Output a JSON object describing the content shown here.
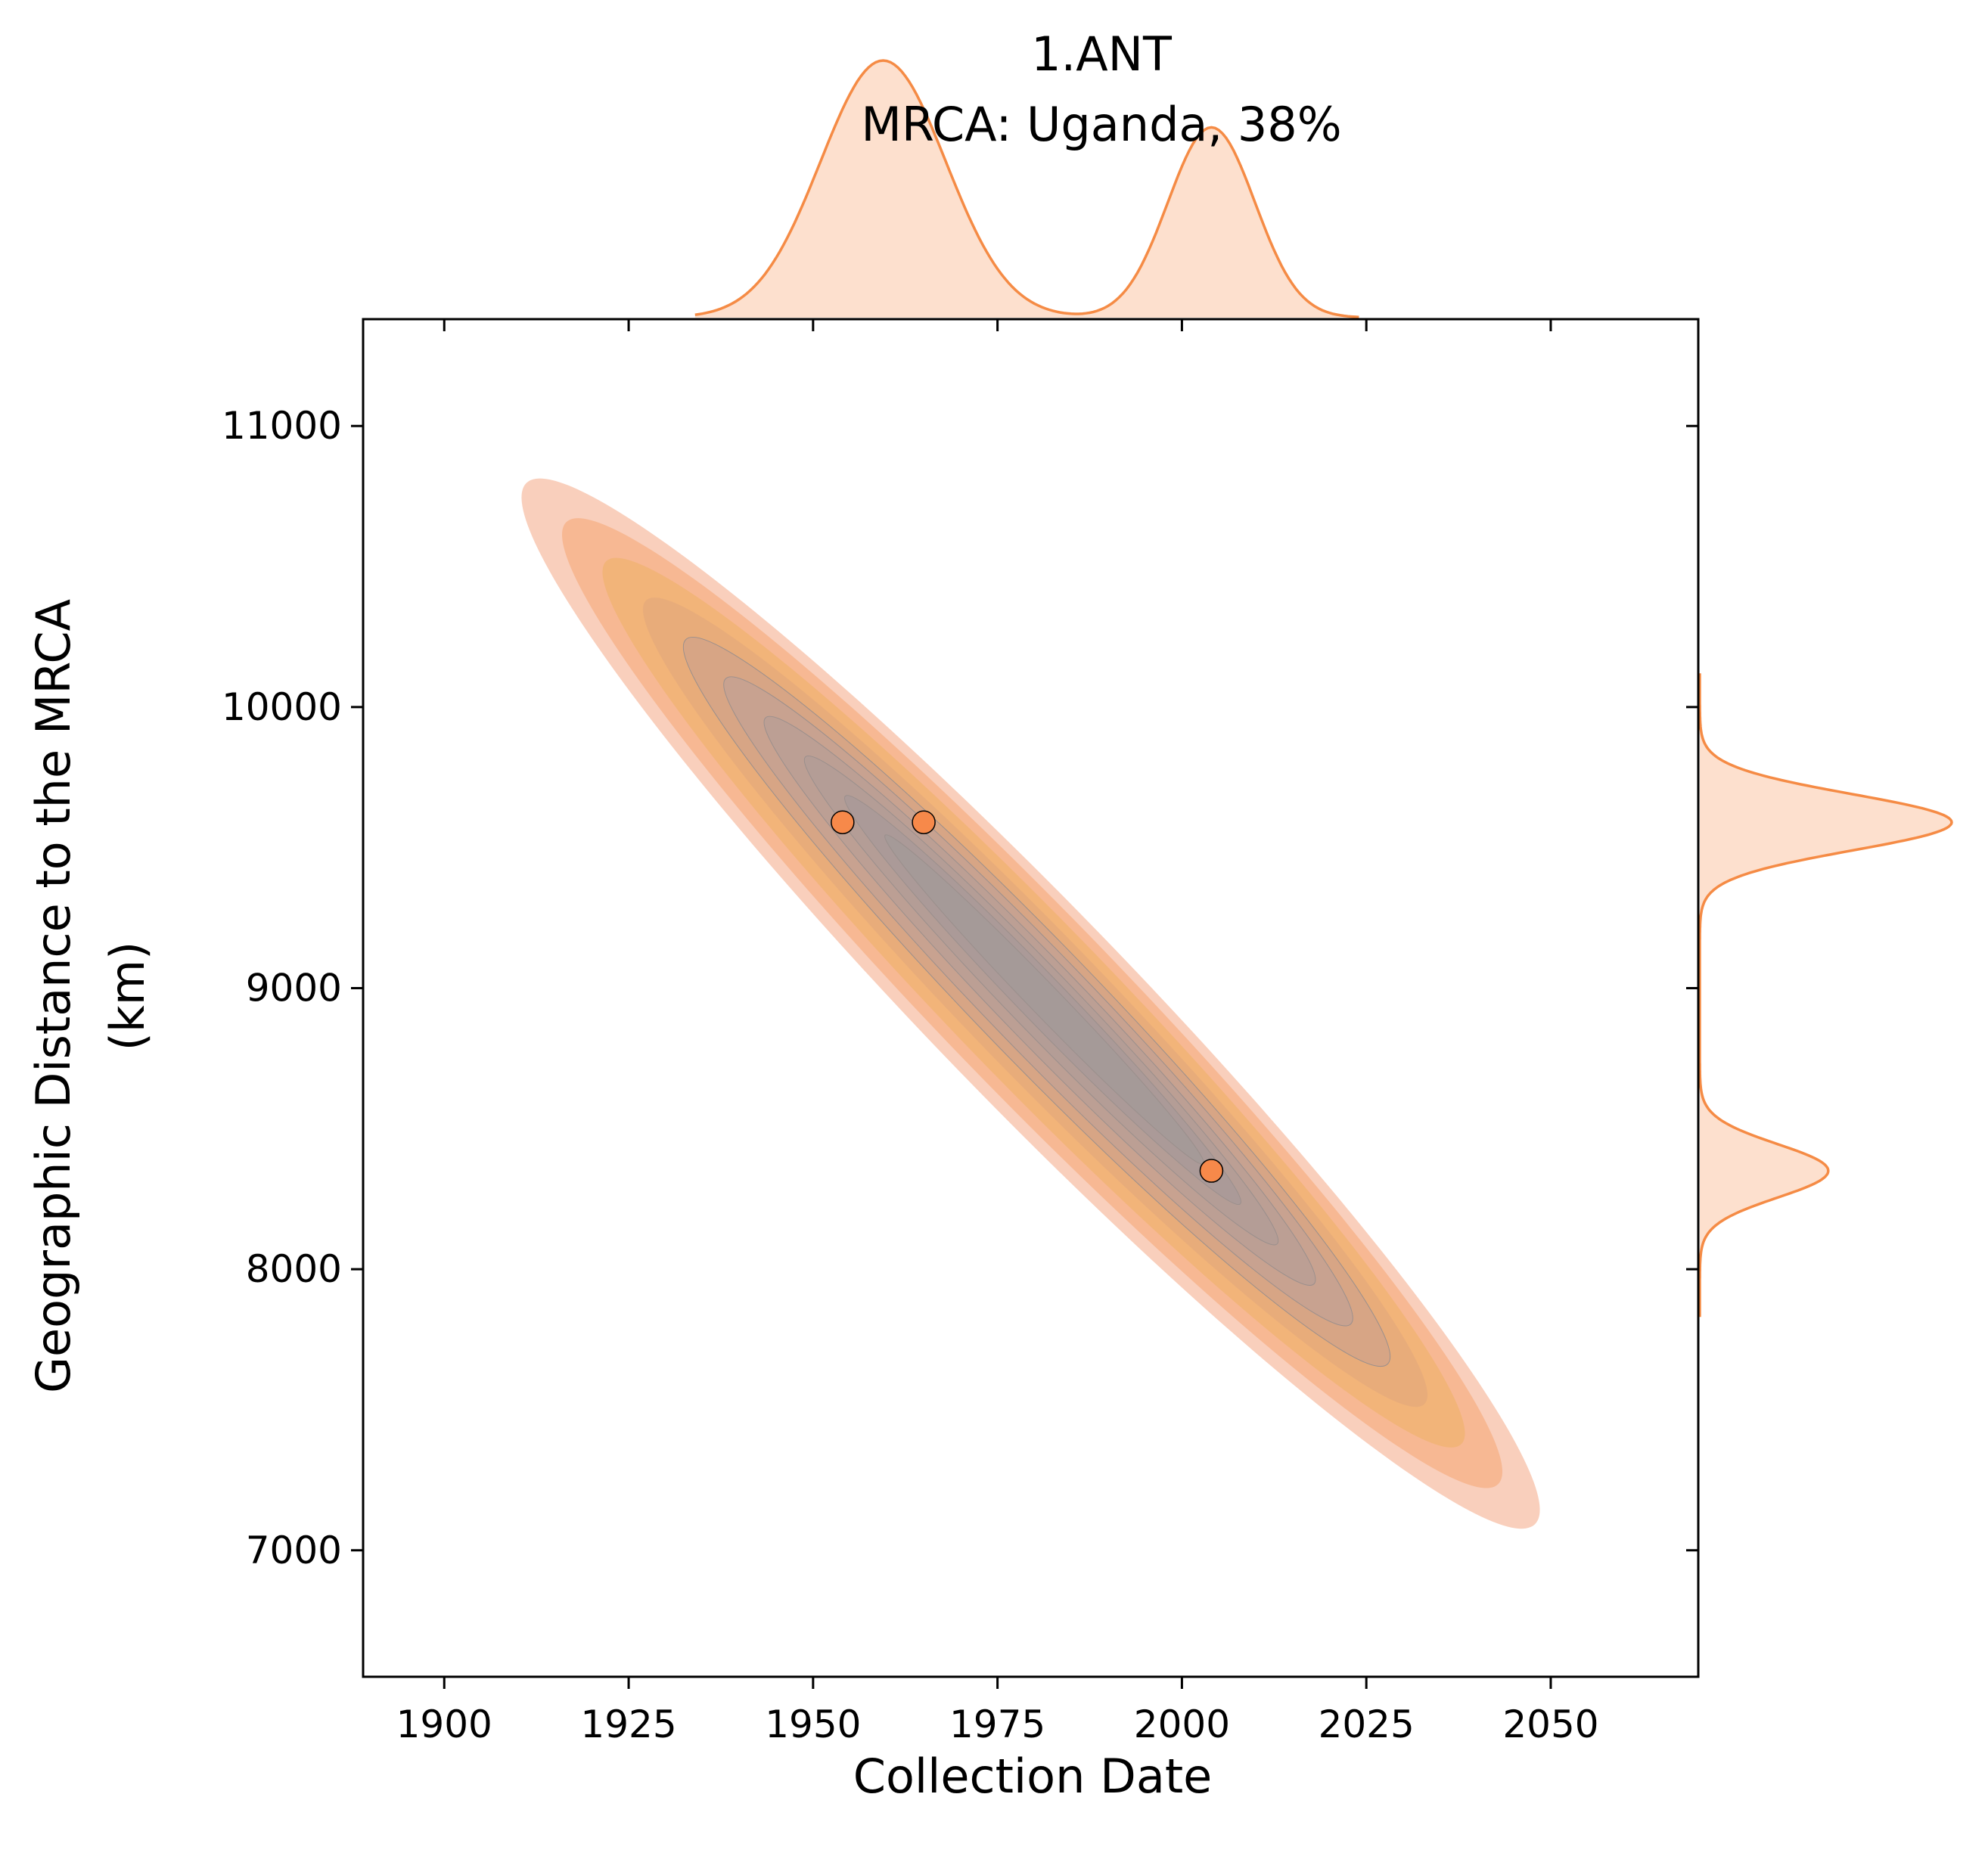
{
  "chart_data": {
    "type": "scatter",
    "title": "1.ANT",
    "subtitle": "MRCA: Uganda, 38%",
    "xlabel": "Collection Date",
    "ylabel_line1": "Geographic Distance to the MRCA",
    "ylabel_line2": "(km)",
    "xlim": [
      1889,
      2070
    ],
    "ylim": [
      6550,
      11380
    ],
    "xticks": [
      1900,
      1925,
      1950,
      1975,
      2000,
      2025,
      2050
    ],
    "yticks": [
      7000,
      8000,
      9000,
      10000,
      11000
    ],
    "xtick_labels": [
      "1900",
      "1925",
      "1950",
      "1975",
      "2000",
      "2025",
      "2050"
    ],
    "ytick_labels": [
      "7000",
      "8000",
      "9000",
      "10000",
      "11000"
    ],
    "points": [
      {
        "x": 1954,
        "y": 9590
      },
      {
        "x": 1965,
        "y": 9590
      },
      {
        "x": 2004,
        "y": 8350
      }
    ],
    "density": {
      "type": "kde",
      "levels": 10,
      "line_from": {
        "x": 1914,
        "y": 10720
      },
      "line_to": {
        "x": 2045,
        "y": 7170
      }
    },
    "marginal_x": [
      {
        "center": 1959.5,
        "sigma": 8.5,
        "height": 1.0
      },
      {
        "center": 2004,
        "sigma": 5.9,
        "height": 0.74
      }
    ],
    "marginal_y": [
      {
        "center": 9590,
        "sigma": 100,
        "height": 1.0
      },
      {
        "center": 8350,
        "sigma": 95,
        "height": 0.51
      }
    ],
    "colors": {
      "point": "#f7894a",
      "kde_line": "#f58b45",
      "kde_fill": "#fde0ce",
      "contour_levels": [
        "#f9cfbc",
        "#f7b893",
        "#f2b479",
        "#e8ac7a",
        "#d7a585",
        "#c8a290",
        "#bc9f94",
        "#b49d96",
        "#ab9a98",
        "#a59a98"
      ]
    },
    "grid": false,
    "legend": "none"
  }
}
